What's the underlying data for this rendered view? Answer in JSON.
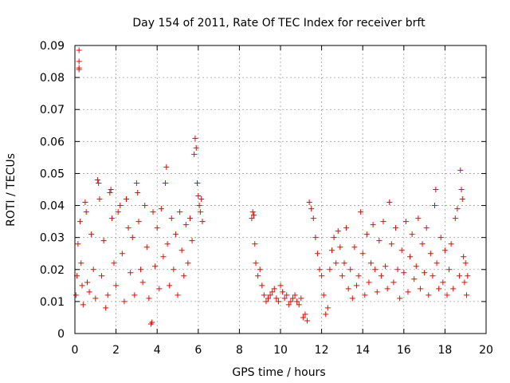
{
  "chart_data": {
    "type": "scatter",
    "title": "Day 154 of 2011, Rate Of TEC Index for receiver brft",
    "xlabel": "GPS time / hours",
    "ylabel": "ROTI / TECUs",
    "xlim": [
      0,
      20
    ],
    "ylim": [
      0,
      0.09
    ],
    "x_ticks": [
      "0",
      "2",
      "4",
      "6",
      "8",
      "10",
      "12",
      "14",
      "16",
      "18",
      "20"
    ],
    "y_ticks": [
      "0",
      "0.01",
      "0.02",
      "0.03",
      "0.04",
      "0.05",
      "0.06",
      "0.07",
      "0.08",
      "0.09"
    ],
    "grid": true,
    "legend": "none",
    "marker": "plus",
    "color": "#ff0000",
    "series": [
      {
        "points": [
          [
            0.05,
            0.012
          ],
          [
            0.1,
            0.018
          ],
          [
            0.15,
            0.028
          ],
          [
            0.2,
            0.0885
          ],
          [
            0.2,
            0.085
          ],
          [
            0.2,
            0.083
          ],
          [
            0.2,
            0.0825
          ],
          [
            0.25,
            0.035
          ],
          [
            0.3,
            0.022
          ],
          [
            0.35,
            0.015
          ],
          [
            0.4,
            0.009
          ],
          [
            0.5,
            0.041
          ],
          [
            0.55,
            0.038
          ],
          [
            0.6,
            0.016
          ],
          [
            0.7,
            0.013
          ],
          [
            0.8,
            0.031
          ],
          [
            0.9,
            0.02
          ],
          [
            1.0,
            0.011
          ],
          [
            1.1,
            0.048
          ],
          [
            1.15,
            0.047
          ],
          [
            1.2,
            0.042
          ],
          [
            1.3,
            0.018
          ],
          [
            1.4,
            0.029
          ],
          [
            1.5,
            0.008
          ],
          [
            1.6,
            0.012
          ],
          [
            1.7,
            0.044
          ],
          [
            1.75,
            0.045
          ],
          [
            1.8,
            0.036
          ],
          [
            1.9,
            0.022
          ],
          [
            2.0,
            0.015
          ],
          [
            2.1,
            0.038
          ],
          [
            2.2,
            0.04
          ],
          [
            2.3,
            0.025
          ],
          [
            2.4,
            0.01
          ],
          [
            2.5,
            0.042
          ],
          [
            2.6,
            0.033
          ],
          [
            2.7,
            0.019
          ],
          [
            2.8,
            0.03
          ],
          [
            2.9,
            0.012
          ],
          [
            3.0,
            0.047
          ],
          [
            3.05,
            0.044
          ],
          [
            3.1,
            0.035
          ],
          [
            3.2,
            0.02
          ],
          [
            3.3,
            0.016
          ],
          [
            3.4,
            0.04
          ],
          [
            3.5,
            0.027
          ],
          [
            3.6,
            0.011
          ],
          [
            3.7,
            0.003
          ],
          [
            3.75,
            0.0035
          ],
          [
            3.8,
            0.038
          ],
          [
            3.9,
            0.021
          ],
          [
            4.0,
            0.033
          ],
          [
            4.1,
            0.014
          ],
          [
            4.2,
            0.039
          ],
          [
            4.3,
            0.024
          ],
          [
            4.4,
            0.047
          ],
          [
            4.45,
            0.052
          ],
          [
            4.5,
            0.028
          ],
          [
            4.6,
            0.015
          ],
          [
            4.7,
            0.036
          ],
          [
            4.8,
            0.02
          ],
          [
            4.9,
            0.031
          ],
          [
            5.0,
            0.012
          ],
          [
            5.1,
            0.038
          ],
          [
            5.2,
            0.026
          ],
          [
            5.3,
            0.018
          ],
          [
            5.4,
            0.034
          ],
          [
            5.5,
            0.022
          ],
          [
            5.6,
            0.036
          ],
          [
            5.7,
            0.029
          ],
          [
            5.8,
            0.056
          ],
          [
            5.85,
            0.061
          ],
          [
            5.9,
            0.058
          ],
          [
            5.95,
            0.047
          ],
          [
            6.0,
            0.043
          ],
          [
            6.05,
            0.04
          ],
          [
            6.1,
            0.038
          ],
          [
            6.15,
            0.042
          ],
          [
            6.2,
            0.035
          ],
          [
            8.6,
            0.036
          ],
          [
            8.65,
            0.038
          ],
          [
            8.7,
            0.037
          ],
          [
            8.75,
            0.028
          ],
          [
            8.8,
            0.022
          ],
          [
            8.9,
            0.018
          ],
          [
            9.0,
            0.02
          ],
          [
            9.1,
            0.015
          ],
          [
            9.2,
            0.012
          ],
          [
            9.3,
            0.01
          ],
          [
            9.4,
            0.011
          ],
          [
            9.5,
            0.012
          ],
          [
            9.6,
            0.013
          ],
          [
            9.7,
            0.014
          ],
          [
            9.8,
            0.011
          ],
          [
            9.9,
            0.01
          ],
          [
            10.0,
            0.015
          ],
          [
            10.1,
            0.013
          ],
          [
            10.2,
            0.011
          ],
          [
            10.3,
            0.012
          ],
          [
            10.4,
            0.009
          ],
          [
            10.5,
            0.01
          ],
          [
            10.6,
            0.011
          ],
          [
            10.7,
            0.012
          ],
          [
            10.8,
            0.01
          ],
          [
            10.9,
            0.009
          ],
          [
            11.0,
            0.011
          ],
          [
            11.1,
            0.005
          ],
          [
            11.2,
            0.006
          ],
          [
            11.3,
            0.004
          ],
          [
            11.4,
            0.041
          ],
          [
            11.5,
            0.039
          ],
          [
            11.6,
            0.036
          ],
          [
            11.7,
            0.03
          ],
          [
            11.8,
            0.025
          ],
          [
            11.9,
            0.02
          ],
          [
            12.0,
            0.018
          ],
          [
            12.1,
            0.012
          ],
          [
            12.2,
            0.006
          ],
          [
            12.3,
            0.008
          ],
          [
            12.4,
            0.02
          ],
          [
            12.5,
            0.026
          ],
          [
            12.6,
            0.03
          ],
          [
            12.7,
            0.022
          ],
          [
            12.8,
            0.032
          ],
          [
            12.9,
            0.027
          ],
          [
            13.0,
            0.018
          ],
          [
            13.1,
            0.022
          ],
          [
            13.2,
            0.033
          ],
          [
            13.3,
            0.014
          ],
          [
            13.4,
            0.02
          ],
          [
            13.5,
            0.011
          ],
          [
            13.6,
            0.027
          ],
          [
            13.7,
            0.015
          ],
          [
            13.8,
            0.018
          ],
          [
            13.9,
            0.038
          ],
          [
            14.0,
            0.025
          ],
          [
            14.1,
            0.012
          ],
          [
            14.2,
            0.031
          ],
          [
            14.3,
            0.016
          ],
          [
            14.4,
            0.022
          ],
          [
            14.5,
            0.034
          ],
          [
            14.6,
            0.02
          ],
          [
            14.7,
            0.013
          ],
          [
            14.8,
            0.029
          ],
          [
            14.9,
            0.018
          ],
          [
            15.0,
            0.035
          ],
          [
            15.1,
            0.021
          ],
          [
            15.2,
            0.014
          ],
          [
            15.3,
            0.041
          ],
          [
            15.4,
            0.028
          ],
          [
            15.5,
            0.016
          ],
          [
            15.6,
            0.033
          ],
          [
            15.7,
            0.02
          ],
          [
            15.8,
            0.011
          ],
          [
            15.9,
            0.026
          ],
          [
            16.0,
            0.019
          ],
          [
            16.1,
            0.035
          ],
          [
            16.2,
            0.013
          ],
          [
            16.3,
            0.024
          ],
          [
            16.4,
            0.031
          ],
          [
            16.5,
            0.017
          ],
          [
            16.6,
            0.021
          ],
          [
            16.7,
            0.036
          ],
          [
            16.8,
            0.014
          ],
          [
            16.9,
            0.028
          ],
          [
            17.0,
            0.019
          ],
          [
            17.1,
            0.033
          ],
          [
            17.2,
            0.012
          ],
          [
            17.3,
            0.025
          ],
          [
            17.4,
            0.018
          ],
          [
            17.5,
            0.04
          ],
          [
            17.55,
            0.045
          ],
          [
            17.6,
            0.022
          ],
          [
            17.7,
            0.014
          ],
          [
            17.8,
            0.03
          ],
          [
            17.9,
            0.016
          ],
          [
            18.0,
            0.026
          ],
          [
            18.1,
            0.012
          ],
          [
            18.2,
            0.02
          ],
          [
            18.3,
            0.028
          ],
          [
            18.4,
            0.014
          ],
          [
            18.5,
            0.036
          ],
          [
            18.6,
            0.039
          ],
          [
            18.7,
            0.018
          ],
          [
            18.75,
            0.051
          ],
          [
            18.8,
            0.045
          ],
          [
            18.85,
            0.042
          ],
          [
            18.9,
            0.024
          ],
          [
            18.95,
            0.016
          ],
          [
            19.0,
            0.022
          ],
          [
            19.05,
            0.012
          ],
          [
            19.1,
            0.018
          ]
        ]
      }
    ]
  }
}
